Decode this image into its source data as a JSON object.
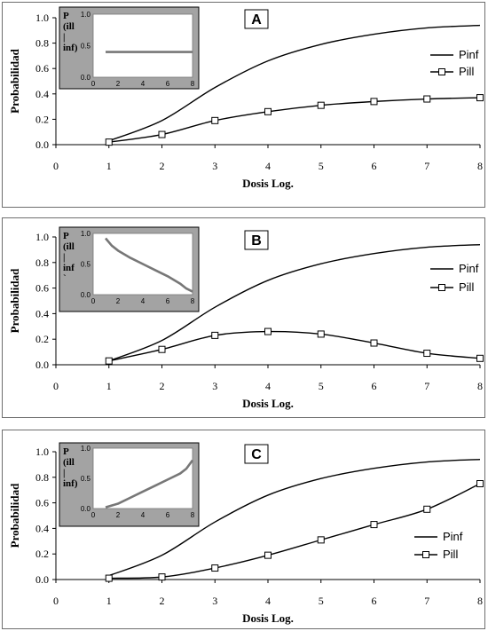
{
  "chart_data": [
    {
      "type": "line",
      "title": "A",
      "xlabel": "Dosis Log.",
      "ylabel": "Probabilidad",
      "xlim": [
        0,
        8
      ],
      "ylim": [
        0,
        1
      ],
      "xticks": [
        "0",
        "1",
        "2",
        "3",
        "4",
        "5",
        "6",
        "7",
        "8"
      ],
      "yticks": [
        "0.0",
        "0.2",
        "0.4",
        "0.6",
        "0.8",
        "1.0"
      ],
      "legend_position": "right",
      "series": [
        {
          "name": "Pinf",
          "marker": "none",
          "x": [
            1,
            2,
            3,
            4,
            5,
            6,
            7,
            8
          ],
          "y": [
            0.03,
            0.19,
            0.45,
            0.66,
            0.79,
            0.87,
            0.92,
            0.94
          ]
        },
        {
          "name": "Pill",
          "marker": "square",
          "x": [
            1,
            2,
            3,
            4,
            5,
            6,
            7,
            8
          ],
          "y": [
            0.02,
            0.08,
            0.19,
            0.26,
            0.31,
            0.34,
            0.36,
            0.37
          ]
        }
      ],
      "inset": {
        "ylabel_lines": [
          "P",
          "(ill",
          "|",
          "inf)"
        ],
        "xlim": [
          0,
          8
        ],
        "ylim": [
          0,
          1
        ],
        "xticks": [
          "0",
          "2",
          "4",
          "6",
          "8"
        ],
        "yticks": [
          "0.0",
          "0.5",
          "1.0"
        ],
        "background": "#a3a3a3",
        "line_color": "#777777",
        "x": [
          1,
          8
        ],
        "y": [
          0.4,
          0.4
        ]
      }
    },
    {
      "type": "line",
      "title": "B",
      "xlabel": "Dosis Log.",
      "ylabel": "Probabilidad",
      "xlim": [
        0,
        8
      ],
      "ylim": [
        0,
        1
      ],
      "xticks": [
        "0",
        "1",
        "2",
        "3",
        "4",
        "5",
        "6",
        "7",
        "8"
      ],
      "yticks": [
        "0.0",
        "0.2",
        "0.4",
        "0.6",
        "0.8",
        "1.0"
      ],
      "legend_position": "right",
      "series": [
        {
          "name": "Pinf",
          "marker": "none",
          "x": [
            1,
            2,
            3,
            4,
            5,
            6,
            7,
            8
          ],
          "y": [
            0.03,
            0.19,
            0.45,
            0.66,
            0.79,
            0.87,
            0.92,
            0.94
          ]
        },
        {
          "name": "Pill",
          "marker": "square",
          "x": [
            1,
            2,
            3,
            4,
            5,
            6,
            7,
            8
          ],
          "y": [
            0.03,
            0.12,
            0.23,
            0.26,
            0.24,
            0.17,
            0.09,
            0.05
          ]
        }
      ],
      "inset": {
        "ylabel_lines": [
          "P",
          "(ill",
          "|",
          "inf",
          "`"
        ],
        "xlim": [
          0,
          8
        ],
        "ylim": [
          0,
          1
        ],
        "xticks": [
          "0",
          "2",
          "4",
          "6",
          "8"
        ],
        "yticks": [
          "0.0",
          "0.5",
          "1.0"
        ],
        "background": "#a3a3a3",
        "line_color": "#777777",
        "x": [
          1,
          1.5,
          2,
          3,
          4,
          5,
          6,
          7,
          7.5,
          8
        ],
        "y": [
          0.92,
          0.8,
          0.72,
          0.6,
          0.5,
          0.4,
          0.3,
          0.18,
          0.1,
          0.05
        ]
      }
    },
    {
      "type": "line",
      "title": "C",
      "xlabel": "Dosis Log.",
      "ylabel": "Probabilidad",
      "xlim": [
        0,
        8
      ],
      "ylim": [
        0,
        1
      ],
      "xticks": [
        "0",
        "1",
        "2",
        "3",
        "4",
        "5",
        "6",
        "7",
        "8"
      ],
      "yticks": [
        "0.0",
        "0.2",
        "0.4",
        "0.6",
        "0.8",
        "1.0"
      ],
      "legend_position": "right",
      "series": [
        {
          "name": "Pinf",
          "marker": "none",
          "x": [
            1,
            2,
            3,
            4,
            5,
            6,
            7,
            8
          ],
          "y": [
            0.03,
            0.19,
            0.45,
            0.66,
            0.79,
            0.87,
            0.92,
            0.94
          ]
        },
        {
          "name": "Pill",
          "marker": "square",
          "x": [
            1,
            2,
            3,
            4,
            5,
            6,
            7,
            8
          ],
          "y": [
            0.01,
            0.02,
            0.09,
            0.19,
            0.31,
            0.43,
            0.55,
            0.75
          ]
        }
      ],
      "inset": {
        "ylabel_lines": [
          "P",
          "(ill",
          "|",
          "inf)"
        ],
        "xlim": [
          0,
          8
        ],
        "ylim": [
          0,
          1
        ],
        "xticks": [
          "0",
          "2",
          "4",
          "6",
          "8"
        ],
        "yticks": [
          "0.0",
          "0.5",
          "1.0"
        ],
        "background": "#a3a3a3",
        "line_color": "#777777",
        "x": [
          1,
          2,
          3,
          4,
          5,
          6,
          7,
          7.5,
          8
        ],
        "y": [
          0.02,
          0.08,
          0.18,
          0.28,
          0.38,
          0.48,
          0.58,
          0.66,
          0.8
        ]
      }
    }
  ]
}
